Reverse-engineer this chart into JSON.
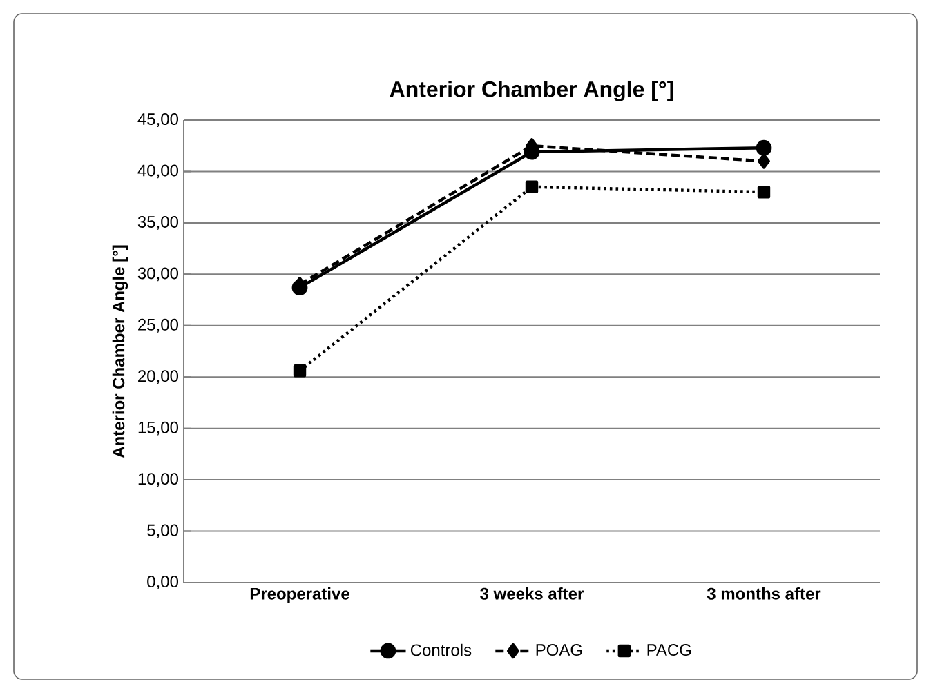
{
  "chart_data": {
    "type": "line",
    "title": "Anterior Chamber Angle [°]",
    "ylabel": "Anterior Chamber Angle [°]",
    "categories": [
      "Preoperative",
      "3 weeks after",
      "3 months after"
    ],
    "series": [
      {
        "name": "Controls",
        "color": "#000000",
        "values": [
          28.7,
          41.9,
          42.3
        ],
        "marker": "circle",
        "line_style": "solid"
      },
      {
        "name": "POAG",
        "color": "#000000",
        "values": [
          29.0,
          42.5,
          41.0
        ],
        "marker": "diamond",
        "line_style": "dashed"
      },
      {
        "name": "PACG",
        "color": "#000000",
        "values": [
          20.6,
          38.5,
          38.0
        ],
        "marker": "square",
        "line_style": "dotted"
      }
    ],
    "ylim": [
      0,
      45
    ],
    "yticks": [
      {
        "value": 0,
        "label": "0,00"
      },
      {
        "value": 5,
        "label": "5,00"
      },
      {
        "value": 10,
        "label": "10,00"
      },
      {
        "value": 15,
        "label": "15,00"
      },
      {
        "value": 20,
        "label": "20,00"
      },
      {
        "value": 25,
        "label": "25,00"
      },
      {
        "value": 30,
        "label": "30,00"
      },
      {
        "value": 35,
        "label": "35,00"
      },
      {
        "value": 40,
        "label": "40,00"
      },
      {
        "value": 45,
        "label": "45,00"
      }
    ],
    "grid": "y",
    "legend": "bottom"
  }
}
